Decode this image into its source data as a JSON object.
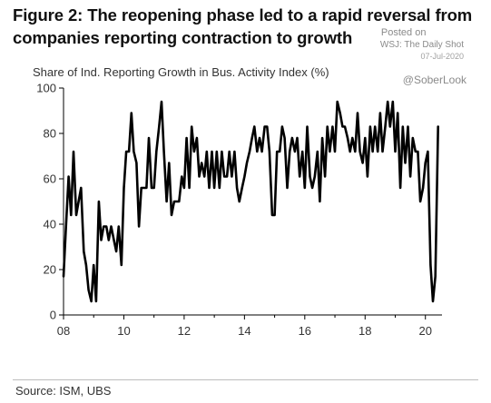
{
  "title_lines": [
    "Figure 2: The reopening phase led to a rapid reversal from",
    "companies reporting contraction to growth"
  ],
  "watermark": {
    "posted": "Posted on",
    "source": "WSJ: The Daily Shot",
    "date": "07-Jul-2020",
    "handle": "@SoberLook"
  },
  "source_note": "Source: ISM, UBS",
  "colors": {
    "line": "#000000",
    "axis": "#000000",
    "text": "#333333"
  },
  "chart_data": {
    "type": "line",
    "title": "Figure 2: The reopening phase led to a rapid reversal from companies reporting contraction to growth",
    "ylabel": "Share of Ind. Reporting Growth in Bus. Activity Index (%)",
    "xlabel": "",
    "x_ticks": [
      "08",
      "10",
      "12",
      "14",
      "16",
      "18",
      "20"
    ],
    "y_ticks": [
      "0",
      "20",
      "40",
      "60",
      "80",
      "100"
    ],
    "xlim": [
      2008.0,
      2020.55
    ],
    "ylim": [
      0,
      100
    ],
    "grid": false,
    "series": [
      {
        "values": [
          [
            2008.0,
            17
          ],
          [
            2008.08,
            39
          ],
          [
            2008.17,
            61
          ],
          [
            2008.25,
            44
          ],
          [
            2008.33,
            72
          ],
          [
            2008.42,
            44
          ],
          [
            2008.5,
            50
          ],
          [
            2008.58,
            56
          ],
          [
            2008.67,
            28
          ],
          [
            2008.75,
            22
          ],
          [
            2008.83,
            11
          ],
          [
            2008.92,
            6
          ],
          [
            2009.0,
            22
          ],
          [
            2009.08,
            6
          ],
          [
            2009.17,
            50
          ],
          [
            2009.25,
            33
          ],
          [
            2009.33,
            39
          ],
          [
            2009.42,
            39
          ],
          [
            2009.5,
            33
          ],
          [
            2009.58,
            39
          ],
          [
            2009.67,
            33
          ],
          [
            2009.75,
            28
          ],
          [
            2009.83,
            39
          ],
          [
            2009.92,
            22
          ],
          [
            2010.0,
            56
          ],
          [
            2010.08,
            72
          ],
          [
            2010.17,
            72
          ],
          [
            2010.25,
            89
          ],
          [
            2010.33,
            72
          ],
          [
            2010.42,
            67
          ],
          [
            2010.5,
            39
          ],
          [
            2010.58,
            56
          ],
          [
            2010.67,
            56
          ],
          [
            2010.75,
            56
          ],
          [
            2010.83,
            78
          ],
          [
            2010.92,
            56
          ],
          [
            2011.0,
            56
          ],
          [
            2011.08,
            72
          ],
          [
            2011.17,
            83
          ],
          [
            2011.25,
            94
          ],
          [
            2011.33,
            72
          ],
          [
            2011.42,
            50
          ],
          [
            2011.5,
            67
          ],
          [
            2011.58,
            44
          ],
          [
            2011.67,
            50
          ],
          [
            2011.75,
            50
          ],
          [
            2011.83,
            50
          ],
          [
            2011.92,
            61
          ],
          [
            2012.0,
            56
          ],
          [
            2012.08,
            78
          ],
          [
            2012.17,
            56
          ],
          [
            2012.25,
            83
          ],
          [
            2012.33,
            72
          ],
          [
            2012.42,
            78
          ],
          [
            2012.5,
            61
          ],
          [
            2012.58,
            67
          ],
          [
            2012.67,
            61
          ],
          [
            2012.75,
            72
          ],
          [
            2012.83,
            56
          ],
          [
            2012.92,
            72
          ],
          [
            2013.0,
            56
          ],
          [
            2013.08,
            72
          ],
          [
            2013.17,
            56
          ],
          [
            2013.25,
            72
          ],
          [
            2013.33,
            61
          ],
          [
            2013.42,
            61
          ],
          [
            2013.5,
            72
          ],
          [
            2013.58,
            61
          ],
          [
            2013.67,
            72
          ],
          [
            2013.75,
            56
          ],
          [
            2013.83,
            50
          ],
          [
            2013.92,
            56
          ],
          [
            2014.0,
            61
          ],
          [
            2014.08,
            67
          ],
          [
            2014.17,
            72
          ],
          [
            2014.25,
            78
          ],
          [
            2014.33,
            83
          ],
          [
            2014.42,
            72
          ],
          [
            2014.5,
            78
          ],
          [
            2014.58,
            72
          ],
          [
            2014.67,
            83
          ],
          [
            2014.75,
            83
          ],
          [
            2014.83,
            72
          ],
          [
            2014.92,
            44
          ],
          [
            2015.0,
            44
          ],
          [
            2015.08,
            72
          ],
          [
            2015.17,
            72
          ],
          [
            2015.25,
            83
          ],
          [
            2015.33,
            78
          ],
          [
            2015.42,
            56
          ],
          [
            2015.5,
            72
          ],
          [
            2015.58,
            78
          ],
          [
            2015.67,
            72
          ],
          [
            2015.75,
            78
          ],
          [
            2015.83,
            61
          ],
          [
            2015.92,
            72
          ],
          [
            2016.0,
            56
          ],
          [
            2016.08,
            83
          ],
          [
            2016.17,
            61
          ],
          [
            2016.25,
            56
          ],
          [
            2016.33,
            61
          ],
          [
            2016.42,
            72
          ],
          [
            2016.5,
            50
          ],
          [
            2016.58,
            78
          ],
          [
            2016.67,
            61
          ],
          [
            2016.75,
            83
          ],
          [
            2016.83,
            72
          ],
          [
            2016.92,
            83
          ],
          [
            2017.0,
            72
          ],
          [
            2017.08,
            94
          ],
          [
            2017.17,
            89
          ],
          [
            2017.25,
            83
          ],
          [
            2017.33,
            83
          ],
          [
            2017.42,
            78
          ],
          [
            2017.5,
            72
          ],
          [
            2017.58,
            78
          ],
          [
            2017.67,
            72
          ],
          [
            2017.75,
            89
          ],
          [
            2017.83,
            72
          ],
          [
            2017.92,
            67
          ],
          [
            2018.0,
            78
          ],
          [
            2018.08,
            61
          ],
          [
            2018.17,
            83
          ],
          [
            2018.25,
            72
          ],
          [
            2018.33,
            83
          ],
          [
            2018.42,
            72
          ],
          [
            2018.5,
            89
          ],
          [
            2018.58,
            72
          ],
          [
            2018.67,
            83
          ],
          [
            2018.75,
            94
          ],
          [
            2018.83,
            83
          ],
          [
            2018.92,
            94
          ],
          [
            2019.0,
            72
          ],
          [
            2019.08,
            89
          ],
          [
            2019.17,
            56
          ],
          [
            2019.25,
            83
          ],
          [
            2019.33,
            67
          ],
          [
            2019.42,
            83
          ],
          [
            2019.5,
            61
          ],
          [
            2019.58,
            78
          ],
          [
            2019.67,
            72
          ],
          [
            2019.75,
            72
          ],
          [
            2019.83,
            50
          ],
          [
            2019.92,
            56
          ],
          [
            2020.0,
            67
          ],
          [
            2020.08,
            72
          ],
          [
            2020.17,
            22
          ],
          [
            2020.25,
            6
          ],
          [
            2020.33,
            17
          ],
          [
            2020.42,
            83
          ]
        ]
      }
    ]
  }
}
